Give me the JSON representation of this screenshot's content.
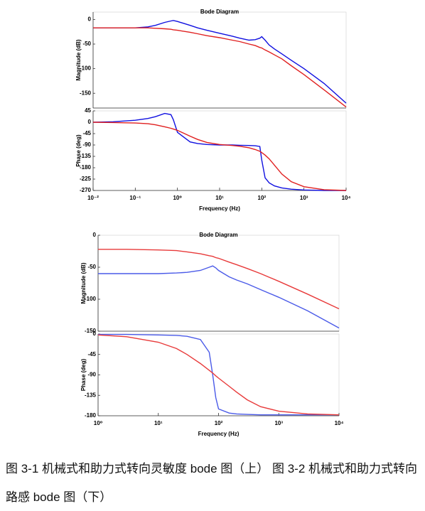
{
  "chart_data": [
    {
      "type": "line",
      "title": "Bode Diagram",
      "y_label": "Magnitude (dB)",
      "log_x": true,
      "x": [
        0.01,
        0.03,
        0.1,
        0.2,
        0.3,
        0.5,
        0.7,
        0.8,
        1,
        2,
        3,
        5,
        10,
        20,
        30,
        50,
        70,
        90,
        100,
        120,
        150,
        200,
        300,
        500,
        1000,
        3000,
        10000
      ],
      "xlim": [
        0.01,
        10000
      ],
      "ylim": [
        -180,
        15
      ],
      "yticks": [
        0,
        -50,
        -100,
        -150
      ],
      "series": [
        {
          "color": "#1010e0",
          "values": [
            -17,
            -17,
            -17,
            -15,
            -12,
            -6,
            -3,
            -2,
            -4,
            -12,
            -17,
            -22,
            -28,
            -34,
            -38,
            -42,
            -41,
            -38,
            -35,
            -42,
            -52,
            -60,
            -70,
            -83,
            -100,
            -130,
            -170
          ]
        },
        {
          "color": "#e02020",
          "values": [
            -17,
            -17,
            -17,
            -17,
            -18,
            -19,
            -20,
            -21,
            -22,
            -26,
            -29,
            -33,
            -37,
            -42,
            -45,
            -50,
            -53,
            -57,
            -58,
            -62,
            -66,
            -72,
            -80,
            -94,
            -112,
            -143,
            -178
          ]
        }
      ]
    },
    {
      "type": "line",
      "y_label": "Phase (deg)",
      "x_label": "Frequency (Hz)",
      "log_x": true,
      "x": [
        0.01,
        0.03,
        0.1,
        0.2,
        0.3,
        0.5,
        0.7,
        0.8,
        1,
        2,
        3,
        5,
        10,
        20,
        30,
        50,
        70,
        90,
        100,
        120,
        150,
        200,
        300,
        500,
        1000,
        3000,
        10000
      ],
      "xlim": [
        0.01,
        10000
      ],
      "xticks": [
        {
          "value": 0.01,
          "label": "10⁻²"
        },
        {
          "value": 0.1,
          "label": "10⁻¹"
        },
        {
          "value": 1,
          "label": "10⁰"
        },
        {
          "value": 10,
          "label": "10¹"
        },
        {
          "value": 100,
          "label": "10²"
        },
        {
          "value": 1000,
          "label": "10³"
        },
        {
          "value": 10000,
          "label": "10⁴"
        }
      ],
      "ylim": [
        -270,
        45
      ],
      "yticks": [
        45,
        0,
        -45,
        -90,
        -135,
        -180,
        -225,
        -270
      ],
      "series": [
        {
          "color": "#1010e0",
          "values": [
            0,
            2,
            8,
            15,
            22,
            35,
            30,
            10,
            -40,
            -78,
            -84,
            -88,
            -90,
            -90,
            -91,
            -92,
            -93,
            -96,
            -150,
            -220,
            -240,
            -252,
            -260,
            -265,
            -268,
            -270,
            -270
          ]
        },
        {
          "color": "#e02020",
          "values": [
            0,
            -1,
            -3,
            -6,
            -10,
            -18,
            -24,
            -27,
            -32,
            -55,
            -68,
            -80,
            -88,
            -92,
            -95,
            -101,
            -108,
            -115,
            -120,
            -130,
            -145,
            -170,
            -205,
            -235,
            -255,
            -267,
            -270
          ]
        }
      ]
    },
    {
      "type": "line",
      "title": "Bode Diagram",
      "y_label": "Magnitude (dB)",
      "log_x": true,
      "x": [
        1,
        3,
        10,
        20,
        30,
        50,
        70,
        80,
        90,
        100,
        150,
        200,
        300,
        500,
        1000,
        3000,
        10000
      ],
      "xlim": [
        1,
        10000
      ],
      "ylim": [
        -150,
        0
      ],
      "yticks": [
        0,
        -50,
        -100,
        -150
      ],
      "series": [
        {
          "color": "#4a5ae8",
          "values": [
            -60,
            -60,
            -60,
            -59,
            -58,
            -55,
            -50,
            -48,
            -51,
            -55,
            -65,
            -70,
            -76,
            -85,
            -97,
            -118,
            -145
          ]
        },
        {
          "color": "#e83a3a",
          "values": [
            -22,
            -22,
            -23,
            -24,
            -26,
            -29,
            -32,
            -33,
            -35,
            -36,
            -42,
            -46,
            -52,
            -60,
            -72,
            -92,
            -115
          ]
        }
      ]
    },
    {
      "type": "line",
      "y_label": "Phase (deg)",
      "x_label": "Frequency (Hz)",
      "log_x": true,
      "x": [
        1,
        3,
        10,
        20,
        30,
        50,
        70,
        80,
        90,
        100,
        150,
        200,
        300,
        500,
        1000,
        3000,
        10000
      ],
      "xlim": [
        1,
        10000
      ],
      "xticks": [
        {
          "value": 1,
          "label": "10⁰"
        },
        {
          "value": 10,
          "label": "10¹"
        },
        {
          "value": 100,
          "label": "10²"
        },
        {
          "value": 1000,
          "label": "10³"
        },
        {
          "value": 10000,
          "label": "10⁴"
        }
      ],
      "ylim": [
        -180,
        0
      ],
      "yticks": [
        0,
        -45,
        -90,
        -135,
        -180
      ],
      "series": [
        {
          "color": "#4a5ae8",
          "values": [
            -1,
            -1,
            -2,
            -3,
            -5,
            -12,
            -40,
            -90,
            -140,
            -165,
            -174,
            -176,
            -177,
            -178,
            -178,
            -178,
            -178
          ]
        },
        {
          "color": "#e83a3a",
          "values": [
            -2,
            -6,
            -18,
            -32,
            -45,
            -65,
            -80,
            -86,
            -92,
            -97,
            -115,
            -128,
            -145,
            -160,
            -170,
            -176,
            -178
          ]
        }
      ]
    }
  ],
  "caption": "图 3-1 机械式和助力式转向灵敏度 bode 图（上） 图 3-2 机械式和助力式转向路感 bode 图（下）"
}
